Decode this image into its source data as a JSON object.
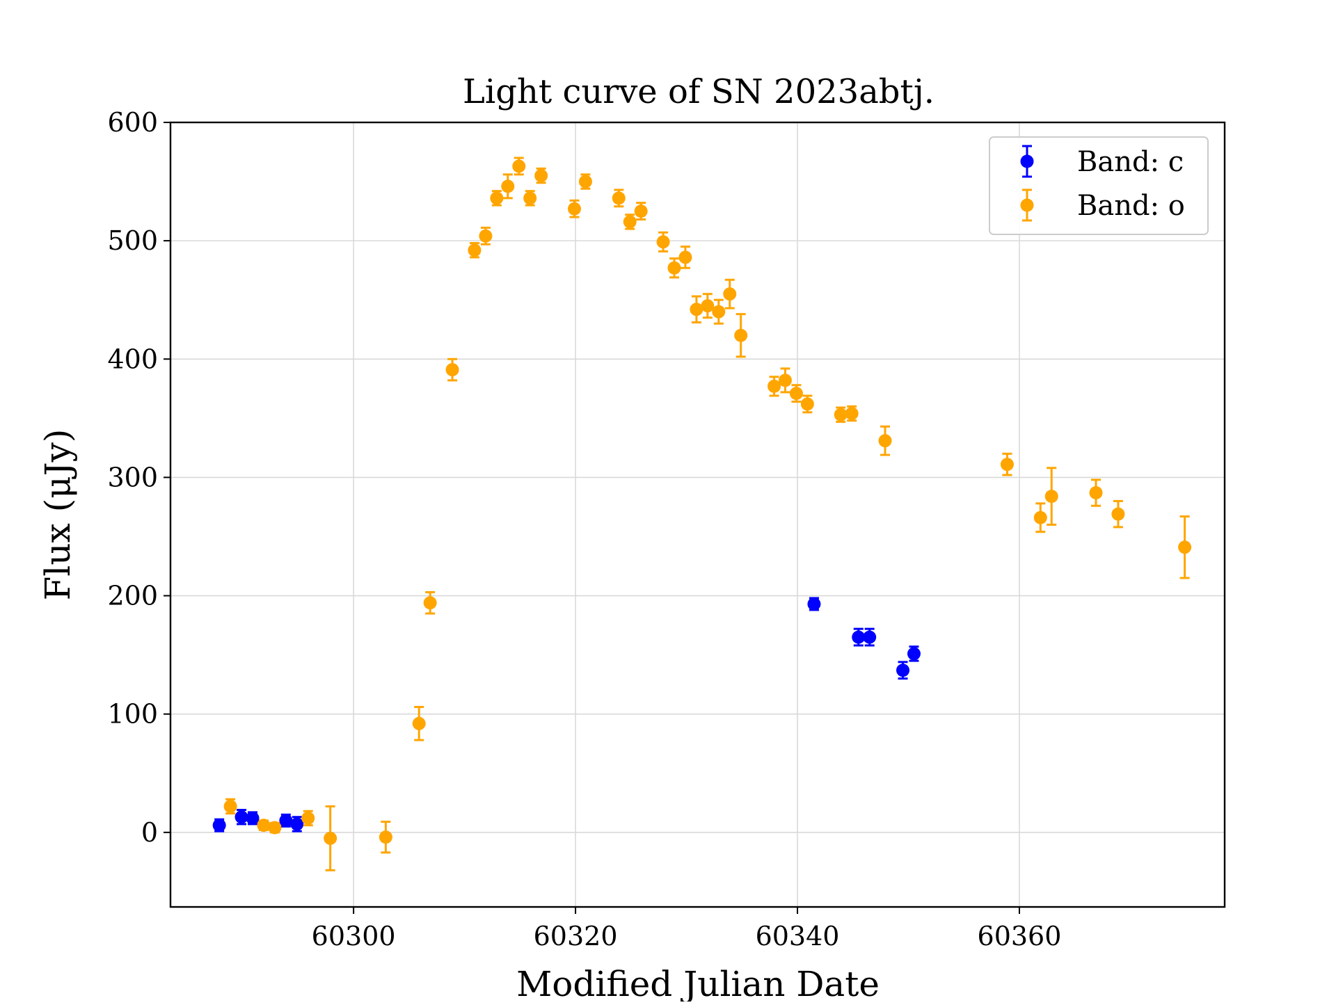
{
  "chart_data": {
    "type": "scatter",
    "title": "Light curve of SN 2023abtj.",
    "xlabel": "Modified Julian Date",
    "ylabel": "Flux (μJy)",
    "xlim": [
      60283.5,
      60378.5
    ],
    "ylim": [
      -63,
      600
    ],
    "x_ticks": [
      60300,
      60320,
      60340,
      60360
    ],
    "y_ticks": [
      0,
      100,
      200,
      300,
      400,
      500,
      600
    ],
    "grid": true,
    "legend_position": "top-right",
    "series": [
      {
        "name": "Band: c",
        "color": "#0000ff",
        "points": [
          {
            "x": 60287.9,
            "y": 6,
            "err": 5
          },
          {
            "x": 60289.9,
            "y": 13,
            "err": 6
          },
          {
            "x": 60290.9,
            "y": 12,
            "err": 5
          },
          {
            "x": 60293.9,
            "y": 10,
            "err": 5
          },
          {
            "x": 60294.9,
            "y": 7,
            "err": 6
          },
          {
            "x": 60341.5,
            "y": 193,
            "err": 5
          },
          {
            "x": 60345.5,
            "y": 165,
            "err": 7
          },
          {
            "x": 60346.5,
            "y": 165,
            "err": 7
          },
          {
            "x": 60349.5,
            "y": 137,
            "err": 7
          },
          {
            "x": 60350.5,
            "y": 151,
            "err": 6
          }
        ]
      },
      {
        "name": "Band: o",
        "color": "#ffa500",
        "points": [
          {
            "x": 60288.9,
            "y": 22,
            "err": 6
          },
          {
            "x": 60291.9,
            "y": 6,
            "err": 4
          },
          {
            "x": 60292.9,
            "y": 4,
            "err": 4
          },
          {
            "x": 60295.9,
            "y": 12,
            "err": 6
          },
          {
            "x": 60297.9,
            "y": -5,
            "err": 27
          },
          {
            "x": 60302.9,
            "y": -4,
            "err": 13
          },
          {
            "x": 60305.9,
            "y": 92,
            "err": 14
          },
          {
            "x": 60306.9,
            "y": 194,
            "err": 9
          },
          {
            "x": 60308.9,
            "y": 391,
            "err": 9
          },
          {
            "x": 60310.9,
            "y": 492,
            "err": 6
          },
          {
            "x": 60311.9,
            "y": 504,
            "err": 7
          },
          {
            "x": 60312.9,
            "y": 536,
            "err": 6
          },
          {
            "x": 60313.9,
            "y": 546,
            "err": 10
          },
          {
            "x": 60314.9,
            "y": 563,
            "err": 7
          },
          {
            "x": 60315.9,
            "y": 536,
            "err": 6
          },
          {
            "x": 60316.9,
            "y": 555,
            "err": 6
          },
          {
            "x": 60319.9,
            "y": 527,
            "err": 7
          },
          {
            "x": 60320.9,
            "y": 550,
            "err": 6
          },
          {
            "x": 60323.9,
            "y": 536,
            "err": 7
          },
          {
            "x": 60324.9,
            "y": 516,
            "err": 6
          },
          {
            "x": 60325.9,
            "y": 525,
            "err": 7
          },
          {
            "x": 60327.9,
            "y": 499,
            "err": 8
          },
          {
            "x": 60328.9,
            "y": 477,
            "err": 8
          },
          {
            "x": 60329.9,
            "y": 486,
            "err": 9
          },
          {
            "x": 60330.9,
            "y": 442,
            "err": 11
          },
          {
            "x": 60331.9,
            "y": 445,
            "err": 10
          },
          {
            "x": 60332.9,
            "y": 440,
            "err": 10
          },
          {
            "x": 60333.9,
            "y": 455,
            "err": 12
          },
          {
            "x": 60334.9,
            "y": 420,
            "err": 18
          },
          {
            "x": 60337.9,
            "y": 377,
            "err": 8
          },
          {
            "x": 60338.9,
            "y": 382,
            "err": 10
          },
          {
            "x": 60339.9,
            "y": 371,
            "err": 7
          },
          {
            "x": 60340.9,
            "y": 362,
            "err": 7
          },
          {
            "x": 60343.9,
            "y": 353,
            "err": 6
          },
          {
            "x": 60344.9,
            "y": 354,
            "err": 6
          },
          {
            "x": 60347.9,
            "y": 331,
            "err": 12
          },
          {
            "x": 60358.9,
            "y": 311,
            "err": 9
          },
          {
            "x": 60361.9,
            "y": 266,
            "err": 12
          },
          {
            "x": 60362.9,
            "y": 284,
            "err": 24
          },
          {
            "x": 60366.9,
            "y": 287,
            "err": 11
          },
          {
            "x": 60368.9,
            "y": 269,
            "err": 11
          },
          {
            "x": 60374.9,
            "y": 241,
            "err": 26
          }
        ]
      }
    ]
  }
}
